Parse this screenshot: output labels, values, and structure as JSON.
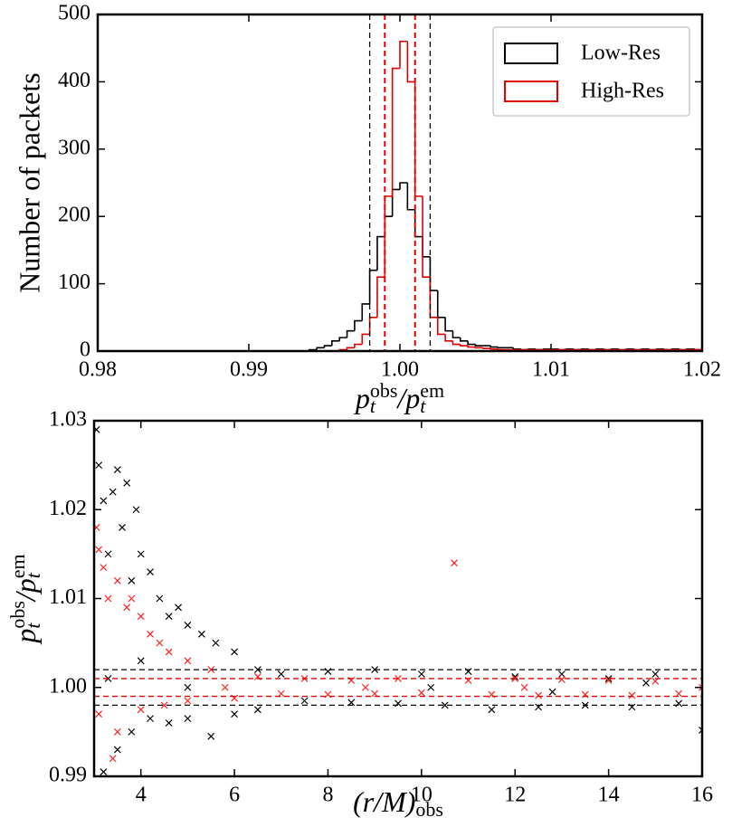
{
  "chart_data": [
    {
      "type": "histogram",
      "xlabel": [
        {
          "text": "p"
        },
        {
          "text": "t",
          "shift": "sub"
        },
        {
          "text": "obs",
          "shift": "sup"
        },
        {
          "text": "/p"
        },
        {
          "text": "t",
          "shift": "sub"
        },
        {
          "text": "em",
          "shift": "sup"
        }
      ],
      "ylabel": "Number of packets",
      "xlim": [
        0.98,
        1.02
      ],
      "ylim": [
        0,
        500
      ],
      "xticks": [
        0.98,
        0.99,
        {
          "value": 1,
          "label": "1.00"
        },
        1.01,
        1.02
      ],
      "yticks": [
        0,
        100,
        200,
        300,
        400,
        500
      ],
      "legend": "upper right",
      "bins": [
        0.99,
        0.9905,
        0.991,
        0.9915,
        0.992,
        0.9925,
        0.993,
        0.9935,
        0.994,
        0.9945,
        0.995,
        0.9955,
        0.996,
        0.9965,
        0.997,
        0.9975,
        0.998,
        0.9985,
        0.999,
        0.9995,
        1.0,
        1.0005,
        1.001,
        1.0015,
        1.002,
        1.0025,
        1.003,
        1.0035,
        1.004,
        1.0045,
        1.005,
        1.0055,
        1.006,
        1.0065,
        1.007,
        1.0075,
        1.008,
        1.0085,
        1.009,
        1.0095,
        1.01,
        1.0105,
        1.011,
        1.0115,
        1.012,
        1.0125,
        1.013,
        1.0135,
        1.014,
        1.0145,
        1.015,
        1.0155,
        1.016,
        1.0165,
        1.017,
        1.0175,
        1.018,
        1.0185,
        1.019,
        1.0195,
        1.02
      ],
      "series": [
        {
          "name": "Low-Res",
          "color": "#000000",
          "values": [
            0,
            0,
            0,
            0,
            0,
            0,
            0,
            0,
            2,
            5,
            8,
            15,
            20,
            30,
            45,
            70,
            120,
            170,
            200,
            240,
            250,
            210,
            170,
            140,
            90,
            50,
            30,
            20,
            15,
            10,
            8,
            8,
            6,
            5,
            5,
            3,
            2,
            3,
            2,
            3,
            3,
            2,
            3,
            2,
            3,
            2,
            3,
            2,
            3,
            2,
            3,
            2,
            3,
            2,
            3,
            2,
            3,
            2,
            3,
            2
          ]
        },
        {
          "name": "High-Res",
          "color": "#e00000",
          "values": [
            0,
            0,
            0,
            0,
            0,
            0,
            0,
            0,
            0,
            0,
            0,
            0,
            2,
            5,
            10,
            25,
            50,
            110,
            230,
            420,
            460,
            400,
            230,
            110,
            50,
            25,
            15,
            10,
            8,
            6,
            5,
            4,
            3,
            2,
            2,
            2,
            2,
            2,
            2,
            2,
            2,
            2,
            2,
            2,
            2,
            2,
            2,
            2,
            2,
            2,
            2,
            2,
            2,
            2,
            2,
            2,
            2,
            2,
            2,
            2
          ]
        }
      ],
      "vlines": [
        {
          "value": 0.998,
          "color": "#000000"
        },
        {
          "value": 1.002,
          "color": "#000000"
        },
        {
          "value": 0.999,
          "color": "#e00000"
        },
        {
          "value": 1.001,
          "color": "#e00000"
        }
      ]
    },
    {
      "type": "scatter",
      "xlabel": [
        {
          "text": "(r/M)"
        },
        {
          "text": "obs",
          "shift": "sub"
        }
      ],
      "ylabel": [
        {
          "text": "p"
        },
        {
          "text": "t",
          "shift": "sub"
        },
        {
          "text": "obs",
          "shift": "sup"
        },
        {
          "text": "/p"
        },
        {
          "text": "t",
          "shift": "sub"
        },
        {
          "text": "em",
          "shift": "sup"
        }
      ],
      "xlim": [
        3,
        16
      ],
      "ylim": [
        0.99,
        1.03
      ],
      "xticks": [
        4,
        6,
        8,
        10,
        12,
        14,
        16
      ],
      "yticks": [
        0.99,
        {
          "value": 1,
          "label": "1.00"
        },
        1.01,
        1.02,
        1.03
      ],
      "series": [
        {
          "color": "#000000",
          "x": [
            3.05,
            3.1,
            3.2,
            3.3,
            3.4,
            3.5,
            3.6,
            3.7,
            3.8,
            3.9,
            4.0,
            4.2,
            4.4,
            4.6,
            4.8,
            5.0,
            5.3,
            5.6,
            6.0,
            6.5,
            3.2,
            3.5,
            3.8,
            4.2,
            4.6,
            5.0,
            5.5,
            6.0,
            6.5,
            3.3,
            4.0,
            5.0,
            7,
            7.5,
            8,
            8.5,
            9,
            9.5,
            10,
            10.5,
            11,
            11.5,
            12,
            12.5,
            13,
            13.5,
            14,
            14.5,
            15,
            15.5,
            16,
            10.2,
            12.8,
            14.8
          ],
          "values": [
            1.029,
            1.025,
            1.021,
            1.015,
            1.022,
            1.0245,
            1.018,
            1.023,
            1.012,
            1.02,
            1.015,
            1.013,
            1.01,
            1.008,
            1.009,
            1.007,
            1.006,
            1.005,
            1.004,
            1.002,
            0.9905,
            0.993,
            0.995,
            0.9965,
            0.996,
            0.9965,
            0.9945,
            0.997,
            0.9975,
            1.001,
            1.003,
            1.0,
            1.0015,
            0.9985,
            1.0018,
            0.9983,
            1.002,
            0.9982,
            1.0015,
            0.998,
            1.0018,
            0.9975,
            1.0012,
            0.9978,
            1.0015,
            0.998,
            1.001,
            0.9978,
            1.0015,
            0.9982,
            0.9952,
            1.0,
            0.9995,
            1.0005
          ]
        },
        {
          "color": "#ff2020",
          "x": [
            3.05,
            3.1,
            3.2,
            3.3,
            3.4,
            3.5,
            3.7,
            3.8,
            4.0,
            4.2,
            4.4,
            4.6,
            5.0,
            3.1,
            3.5,
            4.0,
            4.5,
            5.0,
            5.5,
            6,
            6.5,
            7,
            7.5,
            8,
            8.5,
            9,
            9.5,
            10,
            10.7,
            11,
            11.5,
            12,
            12.5,
            13,
            13.5,
            14,
            14.5,
            15,
            15.5,
            16,
            8.8,
            12.2,
            5.8
          ],
          "values": [
            1.018,
            1.0155,
            1.0135,
            1.01,
            0.992,
            1.012,
            1.009,
            1.01,
            1.008,
            1.006,
            1.005,
            1.004,
            1.003,
            0.997,
            0.995,
            0.9975,
            0.998,
            0.9985,
            1.002,
            0.9988,
            1.0012,
            0.9993,
            1.001,
            0.9992,
            1.0008,
            0.9993,
            1.001,
            0.9994,
            1.014,
            1.0008,
            0.9992,
            1.001,
            0.9991,
            1.0009,
            0.9992,
            1.0008,
            0.9991,
            1.0007,
            0.9993,
            1.0,
            1.0,
            1.0,
            1.0
          ]
        }
      ],
      "hlines": [
        {
          "value": 0.998,
          "color": "#000000"
        },
        {
          "value": 1.002,
          "color": "#000000"
        },
        {
          "value": 0.999,
          "color": "#e00000"
        },
        {
          "value": 1.001,
          "color": "#e00000"
        }
      ]
    }
  ]
}
